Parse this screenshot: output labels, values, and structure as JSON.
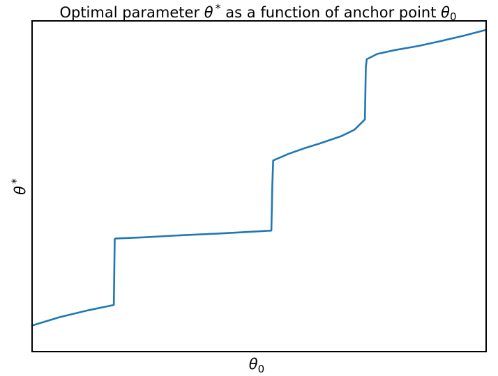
{
  "chart_data": {
    "type": "line",
    "title": "Optimal parameter θ* as a function of anchor point θ₀",
    "title_parts": {
      "prefix": "Optimal parameter ",
      "symbol1": "θ",
      "star": "*",
      "middle": " as a function of anchor point ",
      "symbol2": "θ",
      "subscript": "0"
    },
    "xlabel_parts": {
      "symbol": "θ",
      "subscript": "0"
    },
    "ylabel_parts": {
      "symbol": "θ",
      "star": "*"
    },
    "xlim": [
      0,
      1
    ],
    "ylim": [
      0,
      1
    ],
    "grid": false,
    "ticks_shown": false,
    "series": [
      {
        "color": "#1f77b4",
        "x": [
          0.0,
          0.06,
          0.12,
          0.18,
          0.182,
          0.184,
          0.25,
          0.33,
          0.41,
          0.49,
          0.527,
          0.529,
          0.531,
          0.565,
          0.6,
          0.635,
          0.68,
          0.71,
          0.733,
          0.735,
          0.737,
          0.76,
          0.8,
          0.85,
          0.9,
          0.95,
          1.0
        ],
        "y": [
          0.079,
          0.104,
          0.124,
          0.141,
          0.34,
          0.342,
          0.346,
          0.352,
          0.357,
          0.363,
          0.366,
          0.5,
          0.578,
          0.598,
          0.615,
          0.63,
          0.651,
          0.671,
          0.702,
          0.86,
          0.884,
          0.9,
          0.912,
          0.924,
          0.939,
          0.955,
          0.973
        ]
      }
    ]
  }
}
